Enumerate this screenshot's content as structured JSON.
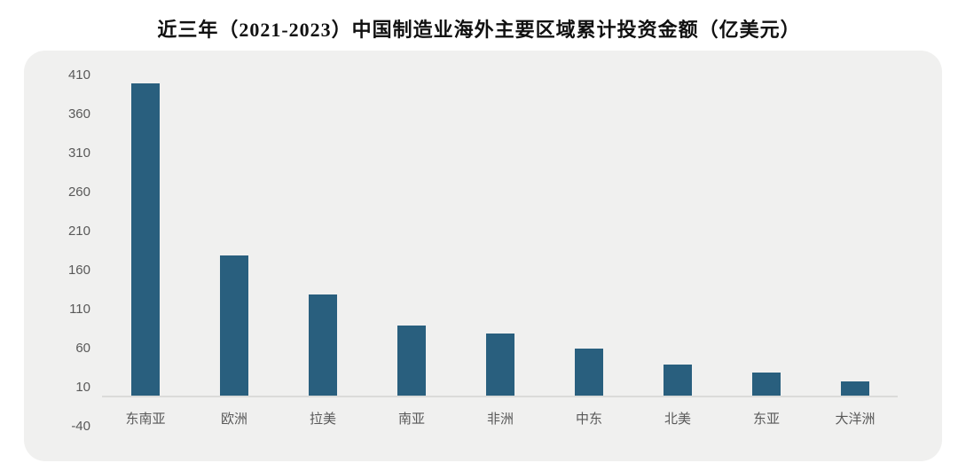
{
  "chart_data": {
    "type": "bar",
    "title": "近三年（2021-2023）中国制造业海外主要区域累计投资金额（亿美元）",
    "categories": [
      "东南亚",
      "欧洲",
      "拉美",
      "南亚",
      "非洲",
      "中东",
      "北美",
      "东亚",
      "大洋洲"
    ],
    "values": [
      400,
      180,
      130,
      90,
      80,
      60,
      40,
      30,
      18
    ],
    "series_name": "累计投资金额（亿美元）",
    "yticks": [
      410,
      360,
      310,
      260,
      210,
      160,
      110,
      60,
      10,
      -40
    ],
    "ylim": [
      -40,
      410
    ],
    "xlabel": "",
    "ylabel": "",
    "grid": false,
    "legend": "none",
    "colors": {
      "bar": "#295F7E",
      "panel_background": "#F0F0EF",
      "page_background": "#FFFFFF",
      "axis_line": "#DBDBD9",
      "tick_label": "#595959",
      "title_text": "#111111"
    }
  }
}
